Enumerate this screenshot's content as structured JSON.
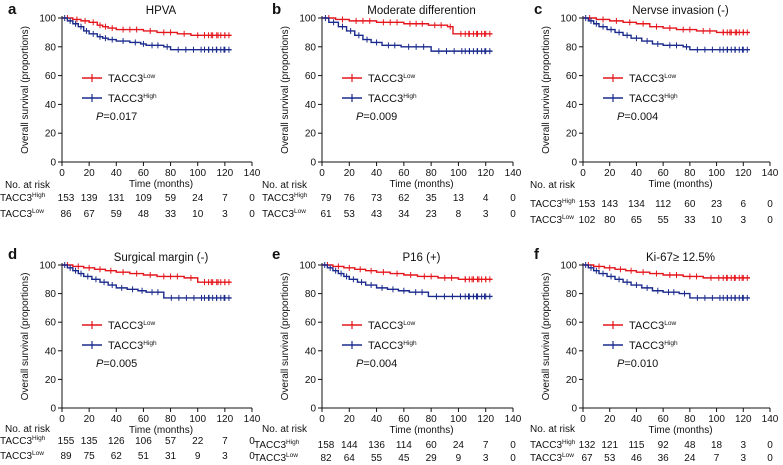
{
  "colors": {
    "low": "#e4151b",
    "high": "#1a2a8c",
    "axis": "#111111"
  },
  "chart_data": [
    {
      "type": "line",
      "panel": "a",
      "title": "HPVA",
      "xlabel": "Time (months)",
      "ylabel": "Overall survival (proportions)",
      "xlim": [
        0,
        140
      ],
      "ylim": [
        0,
        100
      ],
      "xticks": [
        "0",
        "20",
        "40",
        "60",
        "80",
        "100",
        "120",
        "140"
      ],
      "yticks": [
        "0",
        "20",
        "40",
        "60",
        "80",
        "100"
      ],
      "legend": [
        {
          "base": "TACC3",
          "sup": "Low",
          "key": "low"
        },
        {
          "base": "TACC3",
          "sup": "High",
          "key": "high"
        }
      ],
      "p_value": "=0.017",
      "series": [
        {
          "name": "TACC3 Low",
          "key": "low",
          "x": [
            0,
            8,
            14,
            20,
            26,
            30,
            34,
            40,
            60,
            70,
            85,
            95,
            125
          ],
          "y": [
            100,
            99,
            98,
            97,
            95,
            94,
            93,
            92,
            91,
            90,
            89,
            88,
            88
          ]
        },
        {
          "name": "TACC3 High",
          "key": "high",
          "x": [
            0,
            4,
            8,
            12,
            16,
            20,
            26,
            30,
            34,
            40,
            50,
            58,
            62,
            75,
            80,
            125
          ],
          "y": [
            100,
            98,
            96,
            94,
            91,
            89,
            87,
            86,
            85,
            84,
            83,
            82,
            81,
            80,
            78,
            78
          ]
        }
      ],
      "risk": {
        "header": "No. at risk",
        "rows": [
          {
            "base": "TACC3",
            "sup": "High",
            "values": [
              "153",
              "139",
              "131",
              "109",
              "59",
              "24",
              "7",
              "0"
            ]
          },
          {
            "base": "TACC3",
            "sup": "Low",
            "values": [
              "86",
              "67",
              "59",
              "48",
              "33",
              "10",
              "3",
              "0"
            ]
          }
        ]
      }
    },
    {
      "type": "line",
      "panel": "b",
      "title": "Moderate differention",
      "xlabel": "Time (months)",
      "ylabel": "Overall survival (proportions)",
      "xlim": [
        0,
        140
      ],
      "ylim": [
        0,
        100
      ],
      "xticks": [
        "0",
        "20",
        "40",
        "60",
        "80",
        "100",
        "120",
        "140"
      ],
      "yticks": [
        "0",
        "20",
        "40",
        "60",
        "80",
        "100"
      ],
      "legend": [
        {
          "base": "TACC3",
          "sup": "Low",
          "key": "low"
        },
        {
          "base": "TACC3",
          "sup": "High",
          "key": "high"
        }
      ],
      "p_value": "=0.009",
      "series": [
        {
          "name": "TACC3 Low",
          "key": "low",
          "x": [
            0,
            10,
            20,
            40,
            60,
            78,
            92,
            96,
            125
          ],
          "y": [
            100,
            99,
            98,
            97,
            96,
            95,
            94,
            89,
            89
          ]
        },
        {
          "name": "TACC3 High",
          "key": "high",
          "x": [
            0,
            5,
            12,
            18,
            24,
            30,
            36,
            44,
            58,
            80,
            125
          ],
          "y": [
            100,
            97,
            94,
            91,
            88,
            85,
            83,
            81,
            80,
            77,
            77
          ]
        }
      ],
      "risk": {
        "header": "No. at risk",
        "rows": [
          {
            "base": "TACC3",
            "sup": "High",
            "values": [
              "79",
              "76",
              "73",
              "62",
              "35",
              "13",
              "4",
              "0"
            ]
          },
          {
            "base": "TACC3",
            "sup": "Low",
            "values": [
              "61",
              "53",
              "43",
              "34",
              "23",
              "8",
              "3",
              "0"
            ]
          }
        ]
      }
    },
    {
      "type": "line",
      "panel": "c",
      "title": "Nervse invasion (-)",
      "xlabel": "Time (months)",
      "ylabel": "Overall survival (proportions)",
      "xlim": [
        0,
        140
      ],
      "ylim": [
        0,
        100
      ],
      "xticks": [
        "0",
        "20",
        "40",
        "60",
        "80",
        "100",
        "120",
        "140"
      ],
      "yticks": [
        "0",
        "20",
        "40",
        "60",
        "80",
        "100"
      ],
      "legend": [
        {
          "base": "TACC3",
          "sup": "Low",
          "key": "low"
        },
        {
          "base": "TACC3",
          "sup": "High",
          "key": "high"
        }
      ],
      "p_value": "=0.004",
      "series": [
        {
          "name": "TACC3 Low",
          "key": "low",
          "x": [
            0,
            10,
            20,
            30,
            40,
            50,
            60,
            70,
            85,
            100,
            125
          ],
          "y": [
            100,
            99,
            98,
            97,
            96,
            94,
            93,
            92,
            91,
            90,
            90
          ]
        },
        {
          "name": "TACC3 High",
          "key": "high",
          "x": [
            0,
            4,
            8,
            12,
            18,
            24,
            30,
            36,
            44,
            52,
            60,
            75,
            80,
            125
          ],
          "y": [
            100,
            98,
            96,
            94,
            92,
            90,
            88,
            86,
            84,
            82,
            81,
            80,
            78,
            78
          ]
        }
      ],
      "risk": {
        "header": "No. at risk",
        "rows": [
          {
            "base": "TACC3",
            "sup": "High",
            "values": [
              "153",
              "143",
              "134",
              "112",
              "60",
              "23",
              "6",
              "0"
            ]
          },
          {
            "base": "TACC3",
            "sup": "Low",
            "values": [
              "102",
              "80",
              "65",
              "55",
              "33",
              "10",
              "3",
              "0"
            ]
          }
        ]
      }
    },
    {
      "type": "line",
      "panel": "d",
      "title": "Surgical margin (-)",
      "xlabel": "Time (months)",
      "ylabel": "Overall survival (proportions)",
      "xlim": [
        0,
        140
      ],
      "ylim": [
        0,
        100
      ],
      "xticks": [
        "0",
        "20",
        "40",
        "60",
        "80",
        "100",
        "120",
        "140"
      ],
      "yticks": [
        "0",
        "20",
        "40",
        "60",
        "80",
        "100"
      ],
      "legend": [
        {
          "base": "TACC3",
          "sup": "Low",
          "key": "low"
        },
        {
          "base": "TACC3",
          "sup": "High",
          "key": "high"
        }
      ],
      "p_value": "=0.005",
      "series": [
        {
          "name": "TACC3 Low",
          "key": "low",
          "x": [
            0,
            8,
            16,
            24,
            32,
            40,
            50,
            60,
            70,
            90,
            100,
            125
          ],
          "y": [
            100,
            99,
            98,
            97,
            96,
            95,
            94,
            93,
            92,
            91,
            88,
            88
          ]
        },
        {
          "name": "TACC3 High",
          "key": "high",
          "x": [
            0,
            4,
            8,
            12,
            16,
            22,
            28,
            34,
            40,
            48,
            56,
            62,
            75,
            125
          ],
          "y": [
            100,
            98,
            96,
            94,
            92,
            90,
            88,
            86,
            84,
            83,
            82,
            81,
            77,
            77
          ]
        }
      ],
      "risk": {
        "header": "No. at risk",
        "rows": [
          {
            "base": "TACC3",
            "sup": "High",
            "values": [
              "155",
              "135",
              "126",
              "106",
              "57",
              "22",
              "7",
              "0"
            ]
          },
          {
            "base": "TACC3",
            "sup": "Low",
            "values": [
              "89",
              "75",
              "62",
              "51",
              "31",
              "9",
              "3",
              "0"
            ]
          }
        ]
      }
    },
    {
      "type": "line",
      "panel": "e",
      "title": "P16  (+)",
      "xlabel": "Time (months)",
      "ylabel": "Overall survival (proportions)",
      "xlim": [
        0,
        140
      ],
      "ylim": [
        0,
        100
      ],
      "xticks": [
        "0",
        "20",
        "40",
        "60",
        "80",
        "100",
        "120",
        "140"
      ],
      "yticks": [
        "0",
        "20",
        "40",
        "60",
        "80",
        "100"
      ],
      "legend": [
        {
          "base": "TACC3",
          "sup": "Low",
          "key": "low"
        },
        {
          "base": "TACC3",
          "sup": "High",
          "key": "high"
        }
      ],
      "p_value": "=0.004",
      "series": [
        {
          "name": "TACC3 Low",
          "key": "low",
          "x": [
            0,
            8,
            16,
            24,
            32,
            40,
            50,
            60,
            70,
            85,
            100,
            125
          ],
          "y": [
            100,
            99,
            98,
            97,
            96,
            95,
            94,
            93,
            92,
            91,
            90,
            90
          ]
        },
        {
          "name": "TACC3 High",
          "key": "high",
          "x": [
            0,
            4,
            8,
            12,
            16,
            20,
            26,
            32,
            40,
            48,
            56,
            64,
            78,
            125
          ],
          "y": [
            100,
            98,
            96,
            94,
            92,
            90,
            88,
            86,
            84,
            83,
            82,
            81,
            78,
            78
          ]
        }
      ],
      "risk": {
        "header": "No. at risk",
        "rows": [
          {
            "base": "TACC3",
            "sup": "High",
            "values": [
              "158",
              "144",
              "136",
              "114",
              "60",
              "24",
              "7",
              "0"
            ]
          },
          {
            "base": "TACC3",
            "sup": "Low",
            "values": [
              "82",
              "64",
              "55",
              "45",
              "29",
              "9",
              "3",
              "0"
            ]
          }
        ]
      }
    },
    {
      "type": "line",
      "panel": "f",
      "title": "Ki-67≥ 12.5%",
      "xlabel": "Time (months)",
      "ylabel": "Overall survival (proportions)",
      "xlim": [
        0,
        140
      ],
      "ylim": [
        0,
        100
      ],
      "xticks": [
        "0",
        "20",
        "40",
        "60",
        "80",
        "100",
        "120",
        "140"
      ],
      "yticks": [
        "0",
        "20",
        "40",
        "60",
        "80",
        "100"
      ],
      "legend": [
        {
          "base": "TACC3",
          "sup": "Low",
          "key": "low"
        },
        {
          "base": "TACC3",
          "sup": "High",
          "key": "high"
        }
      ],
      "p_value": "=0.010",
      "series": [
        {
          "name": "TACC3 Low",
          "key": "low",
          "x": [
            0,
            8,
            16,
            24,
            32,
            40,
            50,
            60,
            75,
            90,
            125
          ],
          "y": [
            100,
            99,
            98,
            97,
            96,
            95,
            94,
            93,
            92,
            91,
            91
          ]
        },
        {
          "name": "TACC3 High",
          "key": "high",
          "x": [
            0,
            4,
            8,
            12,
            18,
            24,
            30,
            36,
            44,
            52,
            60,
            72,
            80,
            125
          ],
          "y": [
            100,
            98,
            96,
            94,
            92,
            90,
            88,
            86,
            84,
            82,
            81,
            80,
            77,
            77
          ]
        }
      ],
      "risk": {
        "header": "No. at risk",
        "rows": [
          {
            "base": "TACC3",
            "sup": "High",
            "values": [
              "132",
              "121",
              "115",
              "92",
              "48",
              "18",
              "3",
              "0"
            ]
          },
          {
            "base": "TACC3",
            "sup": "Low",
            "values": [
              "67",
              "53",
              "46",
              "36",
              "24",
              "7",
              "3",
              "0"
            ]
          }
        ]
      }
    }
  ]
}
